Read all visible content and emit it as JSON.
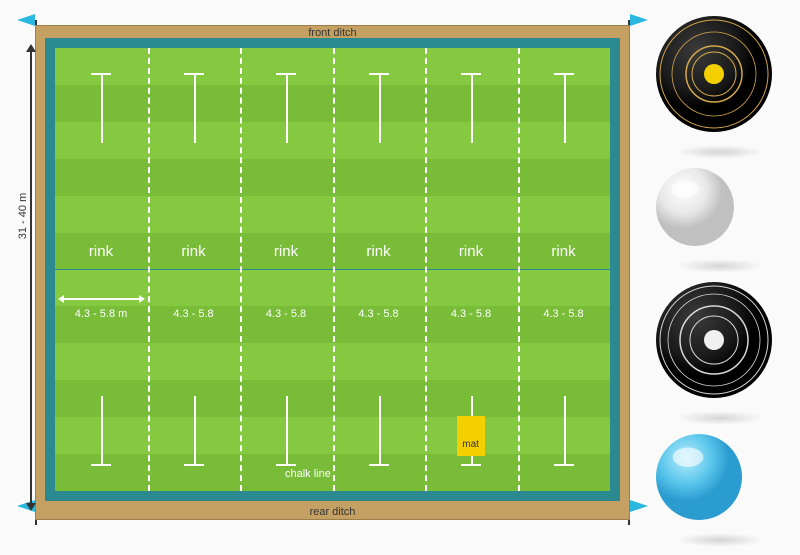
{
  "field": {
    "front_ditch": "front ditch",
    "rear_ditch": "rear ditch",
    "chalk_line": "chalk line",
    "length_label": "31 - 40 m",
    "mat_label": "mat",
    "colors": {
      "frame": "#c4a162",
      "teal": "#2b8a8f",
      "grass_light": "#85c940",
      "grass_dark": "#78bc38",
      "line": "#ffffff",
      "mat": "#f4d000",
      "flag": "#2bb8e0"
    },
    "stripe_count": 12,
    "rinks": [
      {
        "label": "rink",
        "width": "4.3 - 5.8 m"
      },
      {
        "label": "rink",
        "width": "4.3 - 5.8"
      },
      {
        "label": "rink",
        "width": "4.3 - 5.8"
      },
      {
        "label": "rink",
        "width": "4.3 - 5.8"
      },
      {
        "label": "rink",
        "width": "4.3 - 5.8"
      },
      {
        "label": "rink",
        "width": "4.3 - 5.8"
      }
    ]
  },
  "balls": {
    "bowl_black": {
      "diameter": 118,
      "base": "#1a1a1a",
      "highlight": "#3a3a3a",
      "rings": [
        {
          "r": 54,
          "stroke": "#d4a84a",
          "w": 1
        },
        {
          "r": 42,
          "stroke": "#d4a84a",
          "w": 0.8
        },
        {
          "r": 28,
          "stroke": "#d4a84a",
          "w": 1.5
        },
        {
          "r": 22,
          "stroke": "#d4a84a",
          "w": 1
        }
      ],
      "center": {
        "r": 10,
        "fill": "#f4d000"
      }
    },
    "jack_white": {
      "diameter": 80,
      "base": "#e8e8e8",
      "highlight": "#ffffff",
      "shade": "#c0c0c0"
    },
    "bowl_gray": {
      "diameter": 118,
      "base": "#4a4a4a",
      "highlight": "#6a6a6a",
      "rings": [
        {
          "r": 54,
          "stroke": "#d8d8d8",
          "w": 1
        },
        {
          "r": 46,
          "stroke": "#d8d8d8",
          "w": 0.8
        },
        {
          "r": 34,
          "stroke": "#d8d8d8",
          "w": 1.5
        },
        {
          "r": 24,
          "stroke": "#d8d8d8",
          "w": 1
        }
      ],
      "center": {
        "r": 10,
        "fill": "#f0f0f0"
      }
    },
    "jack_blue": {
      "diameter": 88,
      "base": "#5ac6ec",
      "highlight": "#b8ecfb",
      "shade": "#2a9cd0"
    }
  }
}
